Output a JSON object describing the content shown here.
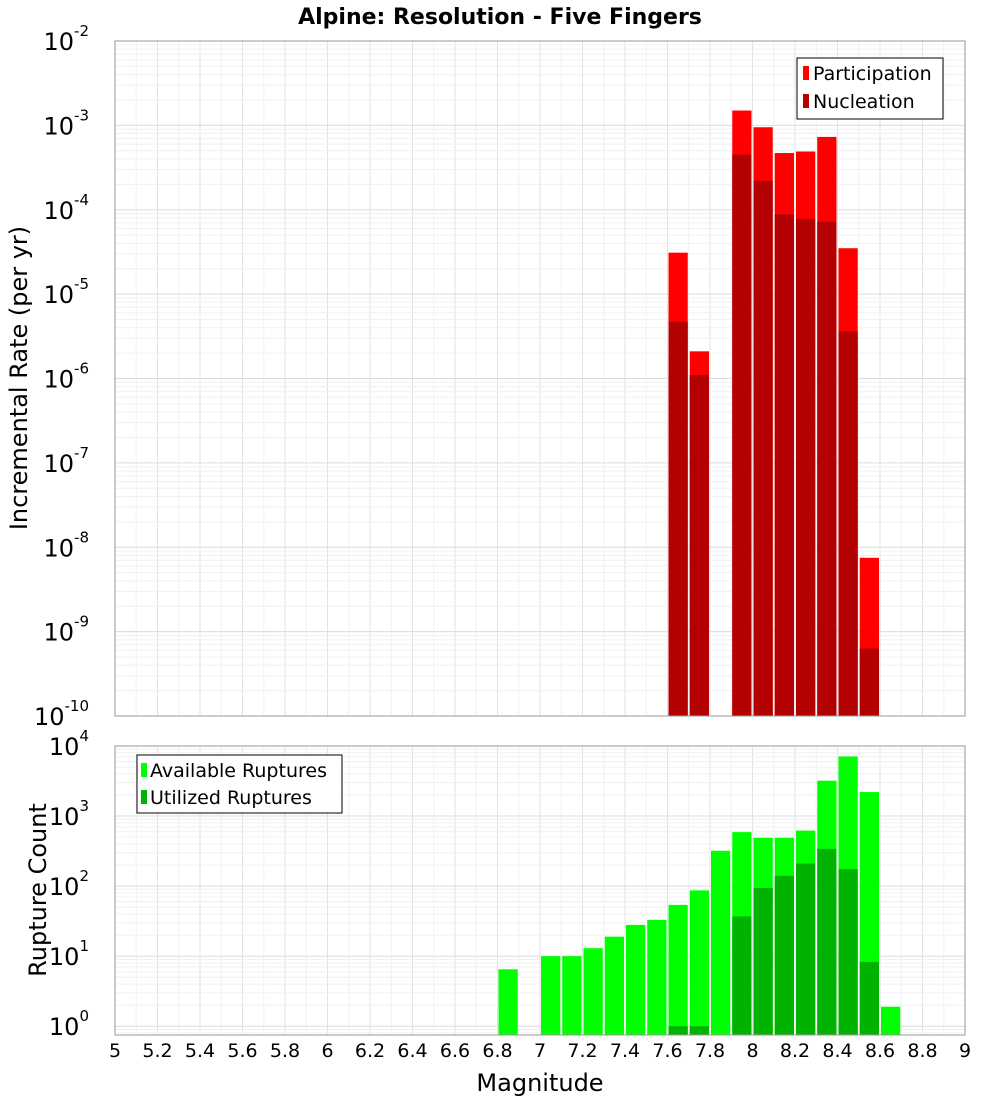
{
  "chart_data": [
    {
      "type": "bar",
      "title": "Alpine: Resolution - Five Fingers",
      "ylabel": "Incremental Rate (per yr)",
      "yscale": "log",
      "ylim": [
        1e-10,
        0.01
      ],
      "xlim": [
        5,
        9
      ],
      "bar_width": 0.1,
      "grid": true,
      "legend_position": "top-right",
      "y_ticks": [
        {
          "base": "10",
          "exp": "-10",
          "value": 1e-10
        },
        {
          "base": "10",
          "exp": "-9",
          "value": 1e-09
        },
        {
          "base": "10",
          "exp": "-8",
          "value": 1e-08
        },
        {
          "base": "10",
          "exp": "-7",
          "value": 1e-07
        },
        {
          "base": "10",
          "exp": "-6",
          "value": 1e-06
        },
        {
          "base": "10",
          "exp": "-5",
          "value": 1e-05
        },
        {
          "base": "10",
          "exp": "-4",
          "value": 0.0001
        },
        {
          "base": "10",
          "exp": "-3",
          "value": 0.001
        },
        {
          "base": "10",
          "exp": "-2",
          "value": 0.01
        }
      ],
      "series": [
        {
          "name": "Participation",
          "color": "#ff0000",
          "x": [
            7.65,
            7.75,
            7.95,
            8.05,
            8.15,
            8.25,
            8.35,
            8.45,
            8.55
          ],
          "values": [
            3.1e-05,
            2.1e-06,
            0.0015,
            0.00095,
            0.00047,
            0.00049,
            0.00073,
            3.5e-05,
            7.5e-09
          ]
        },
        {
          "name": "Nucleation",
          "color": "#b30000",
          "x": [
            7.65,
            7.75,
            7.95,
            8.05,
            8.15,
            8.25,
            8.35,
            8.45,
            8.55
          ],
          "values": [
            4.7e-06,
            1.1e-06,
            0.00045,
            0.00022,
            8.8e-05,
            7.8e-05,
            7.2e-05,
            3.6e-06,
            6.3e-10
          ]
        }
      ]
    },
    {
      "type": "bar",
      "xlabel": "Magnitude",
      "ylabel": "Rupture Count",
      "yscale": "log",
      "ylim": [
        0.75,
        10000
      ],
      "xlim": [
        5,
        9
      ],
      "bar_width": 0.1,
      "grid": true,
      "legend_position": "top-left",
      "x_ticks": [
        "5",
        "5.2",
        "5.4",
        "5.6",
        "5.8",
        "6",
        "6.2",
        "6.4",
        "6.6",
        "6.8",
        "7",
        "7.2",
        "7.4",
        "7.6",
        "7.8",
        "8",
        "8.2",
        "8.4",
        "8.6",
        "8.8",
        "9"
      ],
      "y_ticks": [
        {
          "base": "10",
          "exp": "0",
          "value": 1
        },
        {
          "base": "10",
          "exp": "1",
          "value": 10
        },
        {
          "base": "10",
          "exp": "2",
          "value": 100
        },
        {
          "base": "10",
          "exp": "3",
          "value": 1000
        },
        {
          "base": "10",
          "exp": "4",
          "value": 10000
        }
      ],
      "series": [
        {
          "name": "Available Ruptures",
          "color": "#00ff00",
          "x": [
            6.85,
            7.05,
            7.15,
            7.25,
            7.35,
            7.45,
            7.55,
            7.65,
            7.75,
            7.85,
            7.95,
            8.05,
            8.15,
            8.25,
            8.35,
            8.45,
            8.55,
            8.65
          ],
          "values": [
            6.5,
            10,
            10,
            13,
            19,
            28,
            33,
            54,
            87,
            320,
            590,
            490,
            490,
            620,
            3200,
            7100,
            2200,
            1.9
          ]
        },
        {
          "name": "Utilized Ruptures",
          "color": "#00b300",
          "x": [
            7.65,
            7.75,
            7.95,
            8.05,
            8.15,
            8.25,
            8.35,
            8.45,
            8.55
          ],
          "values": [
            1,
            1,
            37,
            94,
            140,
            210,
            340,
            175,
            8.3
          ]
        }
      ]
    }
  ]
}
